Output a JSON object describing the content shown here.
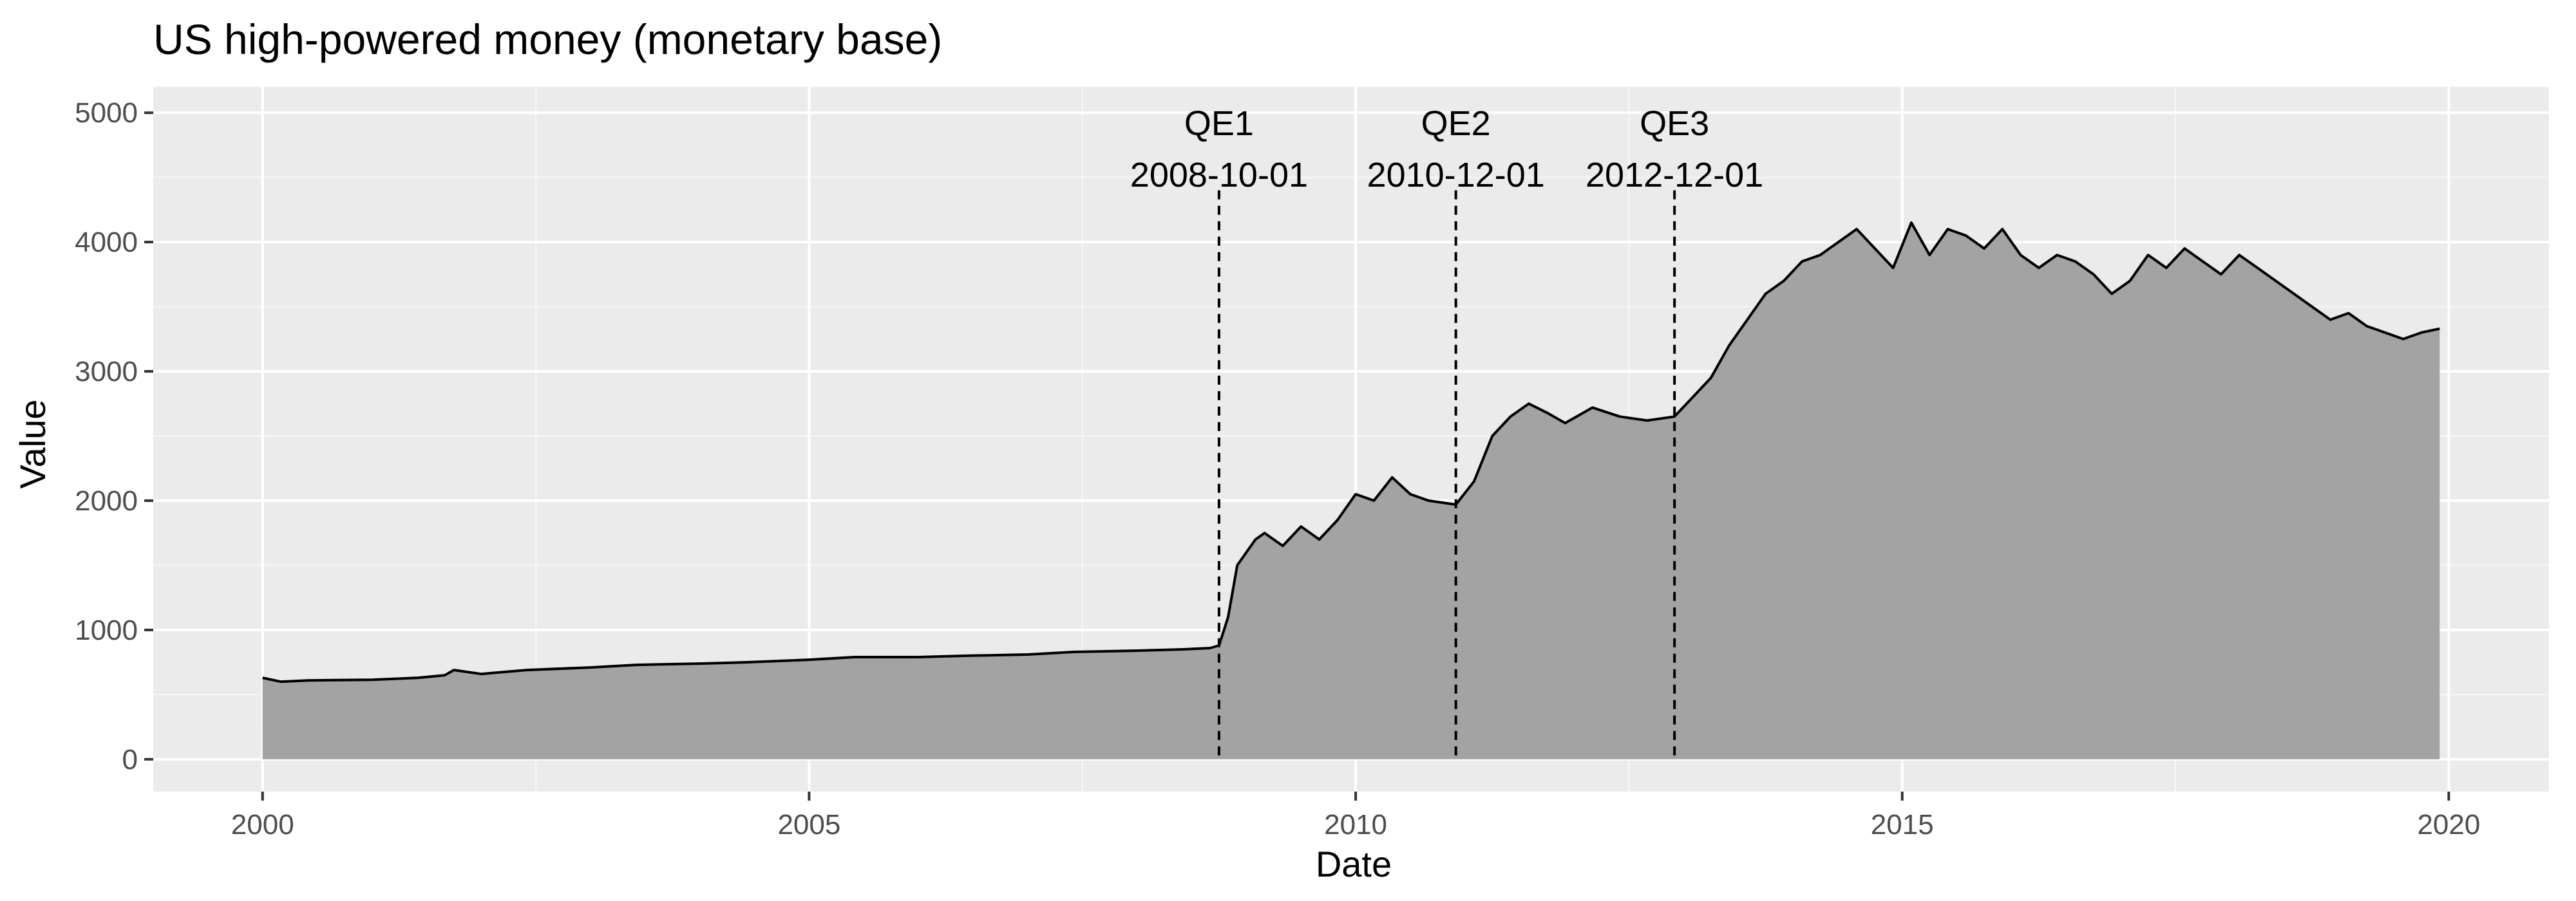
{
  "chart_data": {
    "type": "area",
    "title": "US high-powered money (monetary base)",
    "xlabel": "Date",
    "ylabel": "Value",
    "xlim": [
      "1999-01-01",
      "2020-12-01"
    ],
    "ylim": [
      -250,
      5200
    ],
    "x_ticks": [
      {
        "value": "2000-01-01",
        "label": "2000"
      },
      {
        "value": "2005-01-01",
        "label": "2005"
      },
      {
        "value": "2010-01-01",
        "label": "2010"
      },
      {
        "value": "2015-01-01",
        "label": "2015"
      },
      {
        "value": "2020-01-01",
        "label": "2020"
      }
    ],
    "y_ticks": [
      0,
      1000,
      2000,
      3000,
      4000,
      5000
    ],
    "y_tick_labels": [
      "0",
      "1000",
      "2000",
      "3000",
      "4000",
      "5000"
    ],
    "grid": true,
    "colors": {
      "panel_background": "#ebebeb",
      "grid": "#ffffff",
      "area_fill": "#a3a3a3",
      "line": "#000000"
    },
    "series": [
      {
        "x": [
          "2000-01-01",
          "2000-03-01",
          "2000-06-01",
          "2001-01-01",
          "2001-06-01",
          "2001-09-01",
          "2001-10-01",
          "2002-01-01",
          "2002-06-01",
          "2003-01-01",
          "2003-06-01",
          "2004-01-01",
          "2004-06-01",
          "2005-01-01",
          "2005-06-01",
          "2006-01-01",
          "2006-06-01",
          "2007-01-01",
          "2007-06-01",
          "2008-01-01",
          "2008-06-01",
          "2008-09-01",
          "2008-10-01",
          "2008-11-01",
          "2008-12-01",
          "2009-02-01",
          "2009-03-01",
          "2009-05-01",
          "2009-07-01",
          "2009-09-01",
          "2009-11-01",
          "2010-01-01",
          "2010-03-01",
          "2010-05-01",
          "2010-07-01",
          "2010-09-01",
          "2010-11-01",
          "2010-12-01",
          "2011-02-01",
          "2011-04-01",
          "2011-06-01",
          "2011-08-01",
          "2011-10-01",
          "2011-12-01",
          "2012-03-01",
          "2012-06-01",
          "2012-09-01",
          "2012-12-01",
          "2013-02-01",
          "2013-04-01",
          "2013-06-01",
          "2013-08-01",
          "2013-10-01",
          "2013-12-01",
          "2014-02-01",
          "2014-04-01",
          "2014-06-01",
          "2014-08-01",
          "2014-10-01",
          "2014-12-01",
          "2015-02-01",
          "2015-04-01",
          "2015-06-01",
          "2015-08-01",
          "2015-10-01",
          "2015-12-01",
          "2016-02-01",
          "2016-04-01",
          "2016-06-01",
          "2016-08-01",
          "2016-10-01",
          "2016-12-01",
          "2017-02-01",
          "2017-04-01",
          "2017-06-01",
          "2017-08-01",
          "2017-10-01",
          "2017-12-01",
          "2018-02-01",
          "2018-04-01",
          "2018-06-01",
          "2018-08-01",
          "2018-10-01",
          "2018-12-01",
          "2019-02-01",
          "2019-04-01",
          "2019-06-01",
          "2019-08-01",
          "2019-10-01",
          "2019-12-01"
        ],
        "y": [
          630,
          600,
          610,
          615,
          630,
          650,
          690,
          660,
          690,
          710,
          730,
          740,
          750,
          770,
          790,
          790,
          800,
          810,
          830,
          840,
          850,
          860,
          880,
          1100,
          1500,
          1700,
          1750,
          1650,
          1800,
          1700,
          1850,
          2050,
          2000,
          2180,
          2050,
          2000,
          1980,
          1970,
          2150,
          2500,
          2650,
          2750,
          2680,
          2600,
          2720,
          2650,
          2620,
          2650,
          2800,
          2950,
          3200,
          3400,
          3600,
          3700,
          3850,
          3900,
          4000,
          4100,
          3950,
          3800,
          4150,
          3900,
          4100,
          4050,
          3950,
          4100,
          3900,
          3800,
          3900,
          3850,
          3750,
          3600,
          3700,
          3900,
          3800,
          3950,
          3850,
          3750,
          3900,
          3800,
          3700,
          3600,
          3500,
          3400,
          3450,
          3350,
          3300,
          3250,
          3300,
          3330
        ]
      }
    ],
    "annotations": [
      {
        "x": "2008-10-01",
        "name": "QE1",
        "date_label": "2008-10-01"
      },
      {
        "x": "2010-12-01",
        "name": "QE2",
        "date_label": "2010-12-01"
      },
      {
        "x": "2012-12-01",
        "name": "QE3",
        "date_label": "2012-12-01"
      }
    ]
  }
}
